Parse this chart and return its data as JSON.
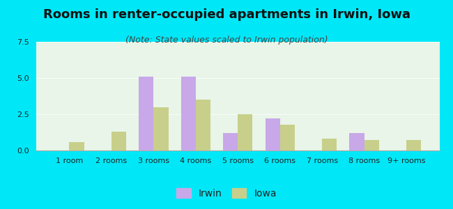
{
  "title": "Rooms in renter-occupied apartments in Irwin, Iowa",
  "subtitle": "(Note: State values scaled to Irwin population)",
  "categories": [
    "1 room",
    "2 rooms",
    "3 rooms",
    "4 rooms",
    "5 rooms",
    "6 rooms",
    "7 rooms",
    "8 rooms",
    "9+ rooms"
  ],
  "irwin_values": [
    0,
    0,
    5.1,
    5.1,
    1.2,
    2.2,
    0,
    1.2,
    0
  ],
  "iowa_values": [
    0.6,
    1.3,
    3.0,
    3.5,
    2.5,
    1.8,
    0.8,
    0.7,
    0.7
  ],
  "irwin_color": "#c8a8e8",
  "iowa_color": "#c8cf8a",
  "background_outer": "#00e8f8",
  "background_plot": "#e8f5e8",
  "ylim": [
    0,
    7.5
  ],
  "yticks": [
    0,
    2.5,
    5,
    7.5
  ],
  "bar_width": 0.35,
  "title_fontsize": 13,
  "subtitle_fontsize": 9,
  "tick_fontsize": 8,
  "legend_fontsize": 10,
  "title_color": "#111111",
  "subtitle_color": "#444444"
}
